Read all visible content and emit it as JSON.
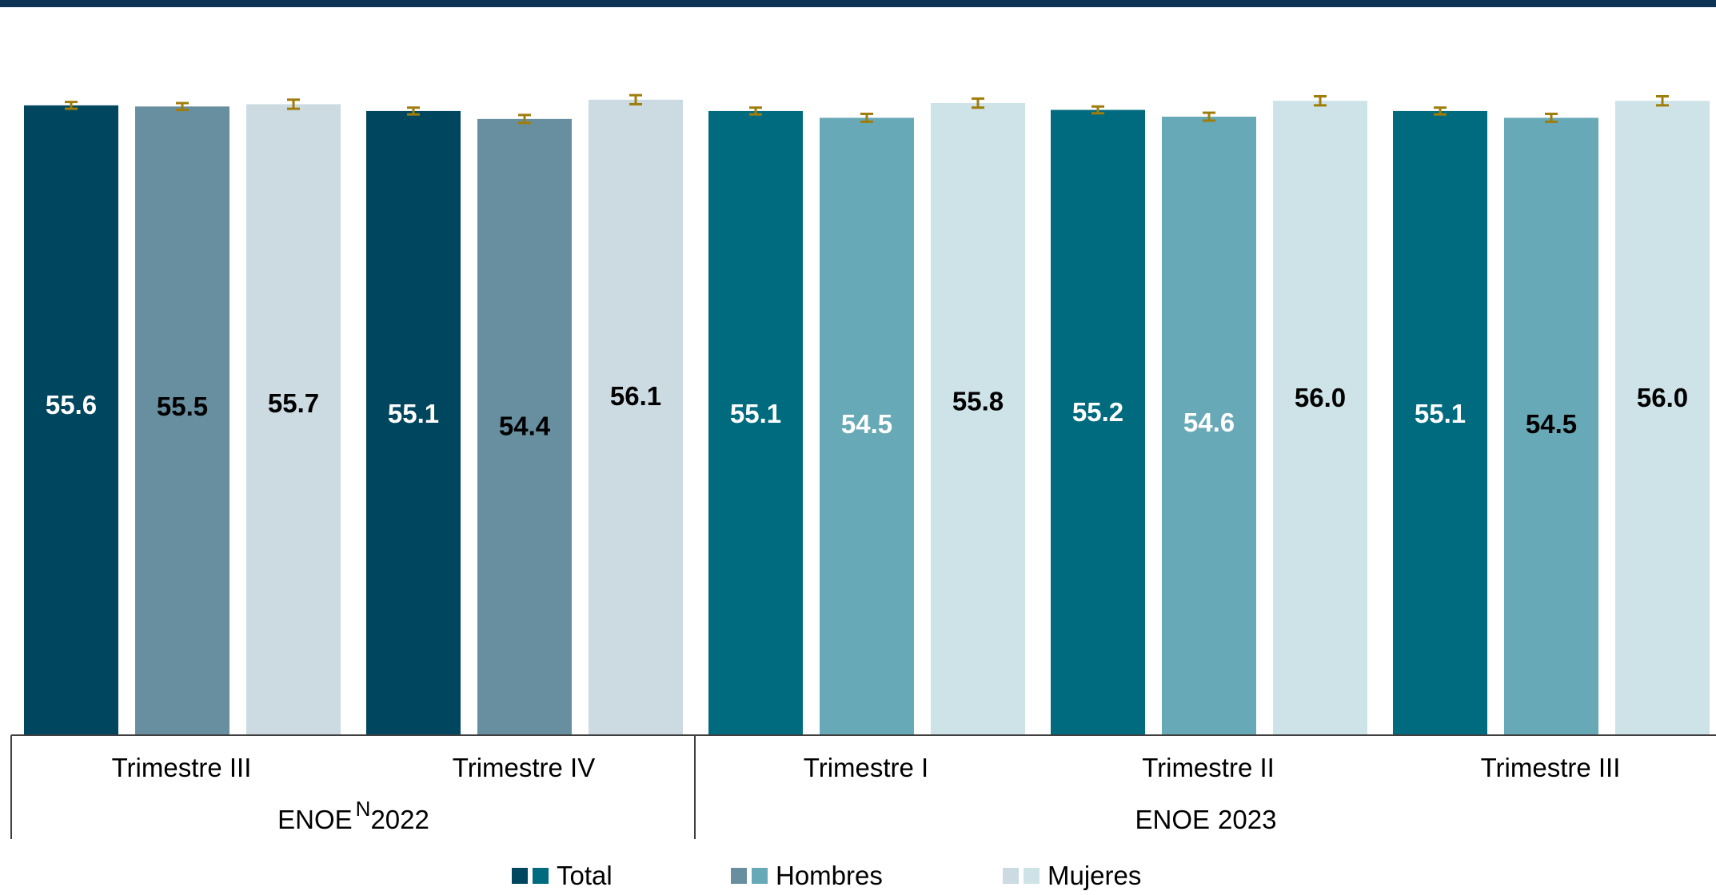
{
  "colors": {
    "top_band": "#0d3455",
    "error_bar": "#a07d0b",
    "axis": "#3f3f3f",
    "total_2022": "#00465f",
    "hombres_2022": "#678fa0",
    "mujeres_2022": "#cbdbe1",
    "total_2023": "#006b7e",
    "hombres_2023": "#67a9b7",
    "mujeres_2023": "#cde3e8"
  },
  "chart_data": {
    "type": "bar",
    "title": "",
    "xlabel": "",
    "ylabel": "",
    "ylim": [
      0,
      57
    ],
    "grid": false,
    "legend_position": "bottom-center",
    "groups": [
      {
        "label": "ENOE",
        "superscript": "N",
        "year": "2022",
        "categories": [
          {
            "label": "Trimestre III",
            "values": [
              55.6,
              55.5,
              55.7
            ],
            "value_labels": [
              "55.6",
              "55.5",
              "55.7"
            ],
            "error_margin": [
              0.3,
              0.3,
              0.4
            ]
          },
          {
            "label": "Trimestre IV",
            "values": [
              55.1,
              54.4,
              56.1
            ],
            "value_labels": [
              "55.1",
              "54.4",
              "56.1"
            ],
            "error_margin": [
              0.3,
              0.35,
              0.4
            ]
          }
        ]
      },
      {
        "label": "ENOE",
        "superscript": "",
        "year": "2023",
        "categories": [
          {
            "label": "Trimestre I",
            "values": [
              55.1,
              54.5,
              55.8
            ],
            "value_labels": [
              "55.1",
              "54.5",
              "55.8"
            ],
            "error_margin": [
              0.3,
              0.35,
              0.4
            ]
          },
          {
            "label": "Trimestre II",
            "values": [
              55.2,
              54.6,
              56.0
            ],
            "value_labels": [
              "55.2",
              "54.6",
              "56.0"
            ],
            "error_margin": [
              0.3,
              0.35,
              0.4
            ]
          },
          {
            "label": "Trimestre III",
            "values": [
              55.1,
              54.5,
              56.0
            ],
            "value_labels": [
              "55.1",
              "54.5",
              "56.0"
            ],
            "error_margin": [
              0.3,
              0.35,
              0.4
            ]
          }
        ]
      }
    ],
    "series": [
      {
        "name": "Total",
        "colors": [
          "#00465f",
          "#006b7e"
        ],
        "label_color": "#ffffff"
      },
      {
        "name": "Hombres",
        "colors": [
          "#678fa0",
          "#67a9b7"
        ],
        "label_color": [
          "#000000",
          "#ffffff",
          "#ffffff",
          "#000000"
        ]
      },
      {
        "name": "Mujeres",
        "colors": [
          "#cbdbe1",
          "#cde3e8"
        ],
        "label_color": "#000000"
      }
    ]
  }
}
